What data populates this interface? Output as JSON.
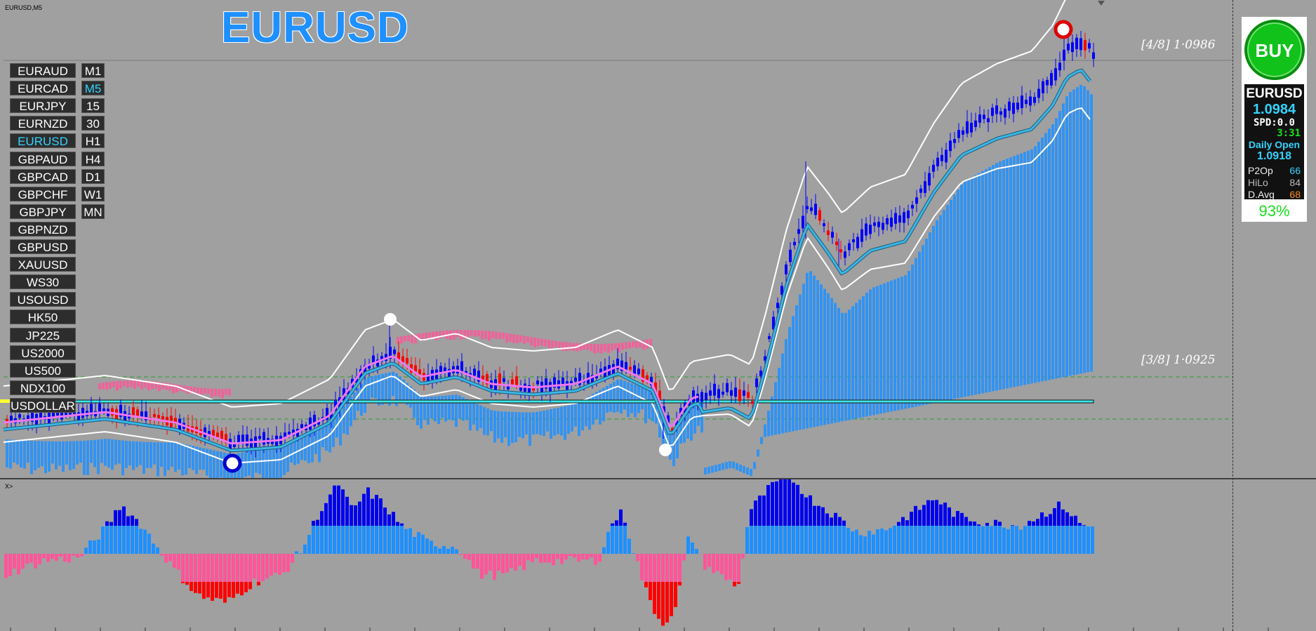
{
  "window": {
    "title": "EURUSD,M5",
    "big_symbol": "EURUSD",
    "sub_label": "X>"
  },
  "pairs": [
    "EURAUD",
    "EURCAD",
    "EURJPY",
    "EURNZD",
    "EURUSD",
    "GBPAUD",
    "GBPCAD",
    "GBPCHF",
    "GBPJPY",
    "GBPNZD",
    "GBPUSD",
    "XAUUSD",
    "WS30",
    "USOUSD",
    "HK50",
    "JP225",
    "US2000",
    "US500",
    "NDX100",
    "USDOLLAR"
  ],
  "active_pair": "EURUSD",
  "timeframes": [
    "M1",
    "M5",
    "15",
    "30",
    "H1",
    "H4",
    "D1",
    "W1",
    "MN"
  ],
  "active_timeframe": "M5",
  "levels": {
    "upper": "[4/8] 1·0986",
    "lower": "[3/8] 1·0925"
  },
  "panel": {
    "signal": "BUY",
    "symbol": "EURUSD",
    "price": "1.0984",
    "spread": "SPD:0.0",
    "timer": "3:31",
    "daily_open_label": "Daily Open",
    "daily_open": "1.0918",
    "rows": [
      {
        "label": "P2Op",
        "value": "66",
        "color": "#34d3ff"
      },
      {
        "label": "HiLo",
        "value": "84",
        "color": "#bbbbbb"
      },
      {
        "label": "D.Avg",
        "value": "68",
        "color": "#ff8c1a"
      }
    ],
    "percent": "93%"
  },
  "colors": {
    "bull": "#0000ff",
    "bear": "#ff0000",
    "ma": "#3bb7e6",
    "envelope": "#ffffff",
    "hist_up": "#1e90ff",
    "hist_down": "#ff5599",
    "hist_up_strong": "#0000ee",
    "hist_down_strong": "#ff0000"
  }
}
